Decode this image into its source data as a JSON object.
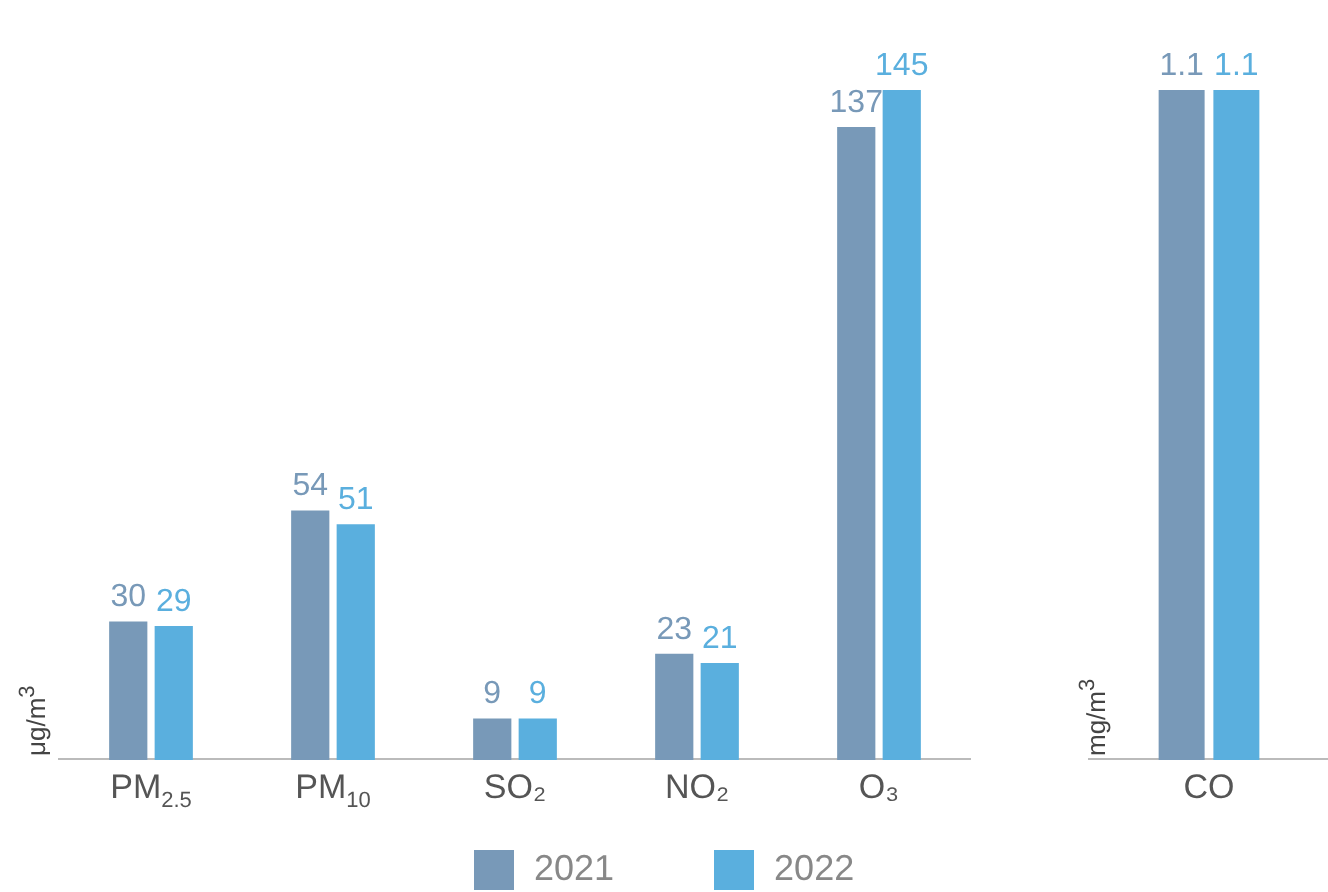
{
  "chart_data": [
    {
      "type": "bar",
      "ylabel": "μg/m$^{3}$",
      "categories": [
        "PM$_{2.5}$",
        "PM$_{10}$",
        "SO₂",
        "NO₂",
        "O₃"
      ],
      "series": [
        {
          "name": "2021",
          "color": "#7899b8",
          "values": [
            30,
            54,
            9,
            23,
            137
          ]
        },
        {
          "name": "2022",
          "color": "#5aafde",
          "values": [
            29,
            51,
            9,
            21,
            145
          ]
        }
      ],
      "data_labels": true,
      "legend": "bottom",
      "grid": false
    },
    {
      "type": "bar",
      "ylabel": "mg/m$^{3}$",
      "categories": [
        "CO"
      ],
      "series": [
        {
          "color": "#7899b8",
          "values": [
            1.1
          ]
        },
        {
          "color": "#5aafde",
          "values": [
            1.1
          ]
        }
      ],
      "data_labels": true,
      "grid": false
    }
  ]
}
